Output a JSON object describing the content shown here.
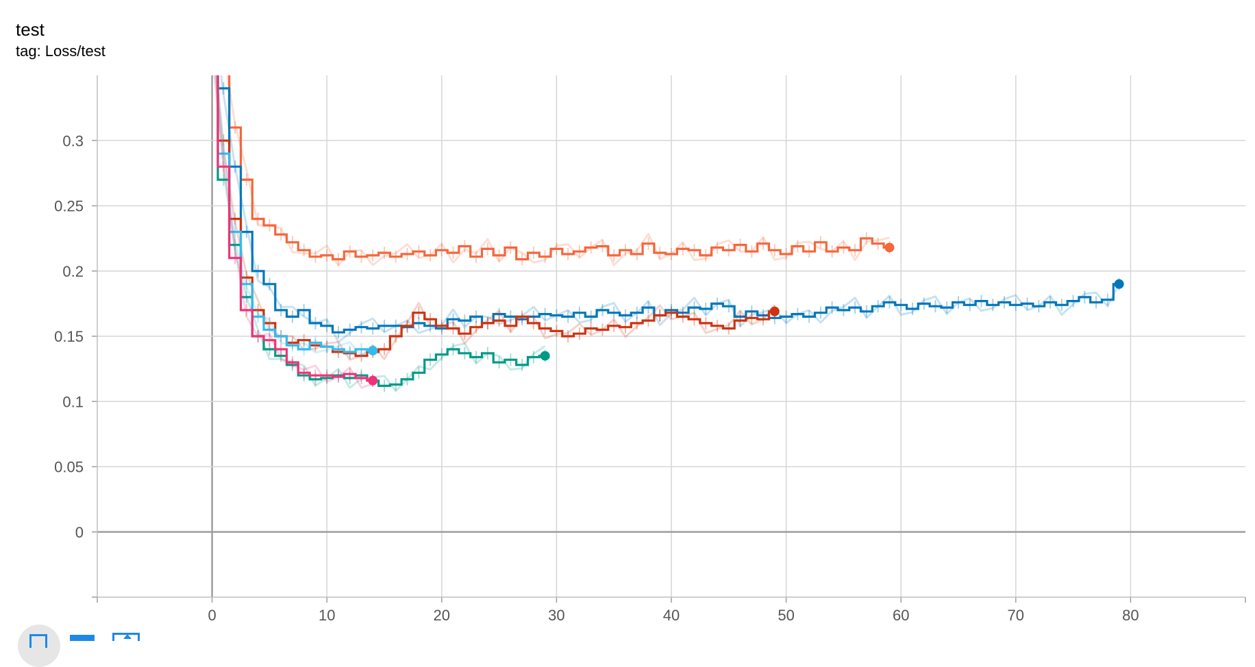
{
  "card": {
    "title": "test",
    "tag": "tag: Loss/test"
  },
  "toolbar": {
    "fullscreen_icon": "fullscreen-icon",
    "toggle_lines_icon": "toggle-lines-icon",
    "fit_domain_icon": "fit-domain-icon"
  },
  "chart_data": {
    "type": "line",
    "title": "test",
    "subtitle": "tag: Loss/test",
    "xlabel": "",
    "ylabel": "",
    "xlim": [
      -10,
      90
    ],
    "ylim": [
      -0.05,
      0.35
    ],
    "grid": true,
    "x_ticks": [
      0,
      10,
      20,
      30,
      40,
      50,
      60,
      70,
      80
    ],
    "y_ticks": [
      0,
      0.05,
      0.1,
      0.15,
      0.2,
      0.25,
      0.3
    ],
    "x_tick_labels": [
      "0",
      "10",
      "20",
      "30",
      "40",
      "50",
      "60",
      "70",
      "80"
    ],
    "y_tick_labels": [
      "0",
      "0.05",
      "0.1",
      "0.15",
      "0.2",
      "0.25",
      "0.3"
    ],
    "series": [
      {
        "color": "#f4673c",
        "x": [
          0,
          1,
          2,
          3,
          4,
          5,
          6,
          7,
          8,
          9,
          10,
          11,
          12,
          13,
          14,
          15,
          16,
          17,
          18,
          19,
          20,
          21,
          22,
          23,
          24,
          25,
          26,
          27,
          28,
          29,
          30,
          31,
          32,
          33,
          34,
          35,
          36,
          37,
          38,
          39,
          40,
          41,
          42,
          43,
          44,
          45,
          46,
          47,
          48,
          49,
          50,
          51,
          52,
          53,
          54,
          55,
          56,
          57,
          58,
          59
        ],
        "values": [
          0.42,
          0.37,
          0.31,
          0.27,
          0.24,
          0.235,
          0.228,
          0.222,
          0.216,
          0.211,
          0.212,
          0.209,
          0.215,
          0.211,
          0.212,
          0.214,
          0.211,
          0.213,
          0.215,
          0.212,
          0.216,
          0.214,
          0.219,
          0.211,
          0.217,
          0.212,
          0.218,
          0.209,
          0.214,
          0.211,
          0.217,
          0.213,
          0.215,
          0.218,
          0.219,
          0.212,
          0.216,
          0.213,
          0.221,
          0.214,
          0.213,
          0.217,
          0.216,
          0.212,
          0.218,
          0.216,
          0.22,
          0.215,
          0.221,
          0.216,
          0.213,
          0.219,
          0.215,
          0.222,
          0.215,
          0.218,
          0.216,
          0.225,
          0.221,
          0.218
        ]
      },
      {
        "color": "#0077bb",
        "x": [
          0,
          1,
          2,
          3,
          4,
          5,
          6,
          7,
          8,
          9,
          10,
          11,
          12,
          13,
          14,
          15,
          16,
          17,
          18,
          19,
          20,
          21,
          22,
          23,
          24,
          25,
          26,
          27,
          28,
          29,
          30,
          31,
          32,
          33,
          34,
          35,
          36,
          37,
          38,
          39,
          40,
          41,
          42,
          43,
          44,
          45,
          46,
          47,
          48,
          49,
          50,
          51,
          52,
          53,
          54,
          55,
          56,
          57,
          58,
          59,
          60,
          61,
          62,
          63,
          64,
          65,
          66,
          67,
          68,
          69,
          70,
          71,
          72,
          73,
          74,
          75,
          76,
          77,
          78,
          79
        ],
        "values": [
          0.4,
          0.34,
          0.28,
          0.23,
          0.2,
          0.19,
          0.17,
          0.165,
          0.17,
          0.16,
          0.158,
          0.153,
          0.155,
          0.157,
          0.156,
          0.158,
          0.158,
          0.157,
          0.16,
          0.158,
          0.156,
          0.163,
          0.162,
          0.165,
          0.16,
          0.167,
          0.165,
          0.163,
          0.165,
          0.167,
          0.166,
          0.165,
          0.168,
          0.165,
          0.17,
          0.168,
          0.166,
          0.168,
          0.172,
          0.166,
          0.17,
          0.168,
          0.172,
          0.171,
          0.175,
          0.173,
          0.165,
          0.169,
          0.166,
          0.164,
          0.165,
          0.167,
          0.165,
          0.168,
          0.172,
          0.17,
          0.172,
          0.169,
          0.173,
          0.176,
          0.174,
          0.171,
          0.175,
          0.173,
          0.172,
          0.176,
          0.174,
          0.177,
          0.174,
          0.176,
          0.174,
          0.175,
          0.173,
          0.176,
          0.174,
          0.177,
          0.18,
          0.176,
          0.178,
          0.19
        ]
      },
      {
        "color": "#cc3311",
        "x": [
          0,
          1,
          2,
          3,
          4,
          5,
          6,
          7,
          8,
          9,
          10,
          11,
          12,
          13,
          14,
          15,
          16,
          17,
          18,
          19,
          20,
          21,
          22,
          23,
          24,
          25,
          26,
          27,
          28,
          29,
          30,
          31,
          32,
          33,
          34,
          35,
          36,
          37,
          38,
          39,
          40,
          41,
          42,
          43,
          44,
          45,
          46,
          47,
          48,
          49
        ],
        "values": [
          0.38,
          0.3,
          0.24,
          0.195,
          0.17,
          0.16,
          0.15,
          0.145,
          0.147,
          0.143,
          0.142,
          0.138,
          0.137,
          0.135,
          0.138,
          0.14,
          0.15,
          0.158,
          0.168,
          0.163,
          0.158,
          0.156,
          0.152,
          0.157,
          0.16,
          0.162,
          0.158,
          0.165,
          0.16,
          0.156,
          0.154,
          0.15,
          0.152,
          0.156,
          0.155,
          0.158,
          0.157,
          0.16,
          0.162,
          0.166,
          0.168,
          0.165,
          0.163,
          0.16,
          0.158,
          0.156,
          0.162,
          0.164,
          0.163,
          0.169
        ]
      },
      {
        "color": "#009988",
        "x": [
          0,
          1,
          2,
          3,
          4,
          5,
          6,
          7,
          8,
          9,
          10,
          11,
          12,
          13,
          14,
          15,
          16,
          17,
          18,
          19,
          20,
          21,
          22,
          23,
          24,
          25,
          26,
          27,
          28,
          29
        ],
        "values": [
          0.38,
          0.27,
          0.22,
          0.18,
          0.15,
          0.14,
          0.135,
          0.128,
          0.12,
          0.117,
          0.118,
          0.12,
          0.118,
          0.12,
          0.116,
          0.112,
          0.113,
          0.117,
          0.122,
          0.132,
          0.136,
          0.14,
          0.137,
          0.134,
          0.137,
          0.13,
          0.132,
          0.128,
          0.134,
          0.135
        ]
      },
      {
        "color": "#33bbee",
        "x": [
          0,
          1,
          2,
          3,
          4,
          5,
          6,
          7,
          8,
          9,
          10,
          11,
          12,
          13,
          14
        ],
        "values": [
          0.39,
          0.29,
          0.23,
          0.19,
          0.165,
          0.155,
          0.15,
          0.143,
          0.14,
          0.145,
          0.142,
          0.14,
          0.138,
          0.14,
          0.139
        ]
      },
      {
        "color": "#ee3377",
        "x": [
          0,
          1,
          2,
          3,
          4,
          5,
          6,
          7,
          8,
          9,
          10,
          11,
          12,
          13,
          14
        ],
        "values": [
          0.37,
          0.28,
          0.21,
          0.17,
          0.15,
          0.147,
          0.14,
          0.13,
          0.122,
          0.12,
          0.12,
          0.119,
          0.121,
          0.118,
          0.116
        ]
      }
    ]
  }
}
